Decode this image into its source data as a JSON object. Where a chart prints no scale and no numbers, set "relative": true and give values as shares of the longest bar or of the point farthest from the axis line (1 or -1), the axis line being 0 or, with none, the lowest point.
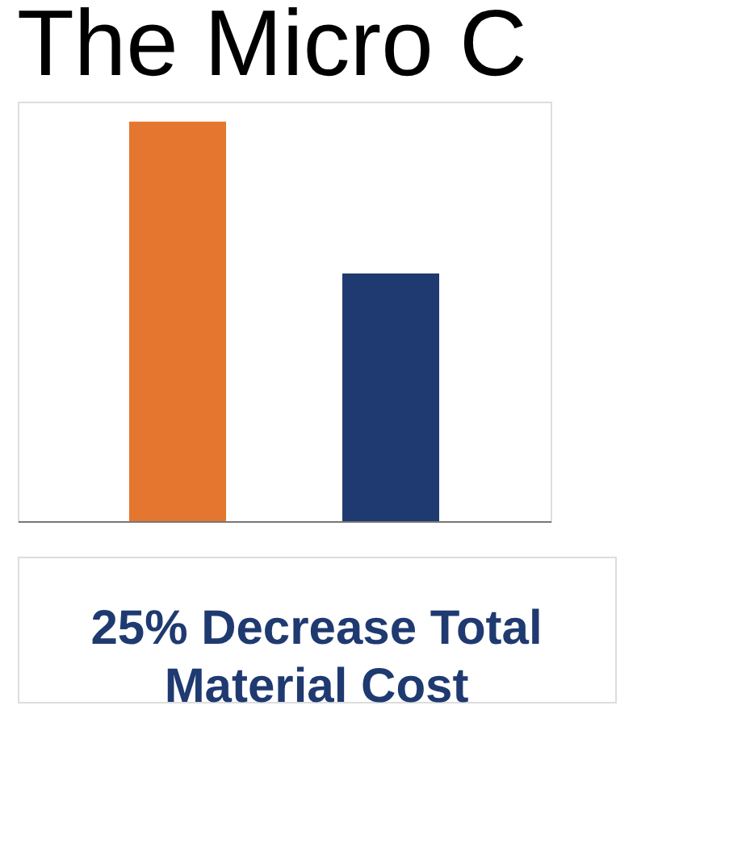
{
  "chart_data": {
    "type": "bar",
    "title": "The Micro C",
    "relative": true,
    "tick_labels": false,
    "grid": false,
    "categories": [
      null,
      null
    ],
    "values": [
      1,
      0.62
    ],
    "colors": [
      "#e57630",
      "#1f3a70"
    ],
    "annotations": [
      "25% Decrease Total\nMaterial Cost"
    ]
  }
}
